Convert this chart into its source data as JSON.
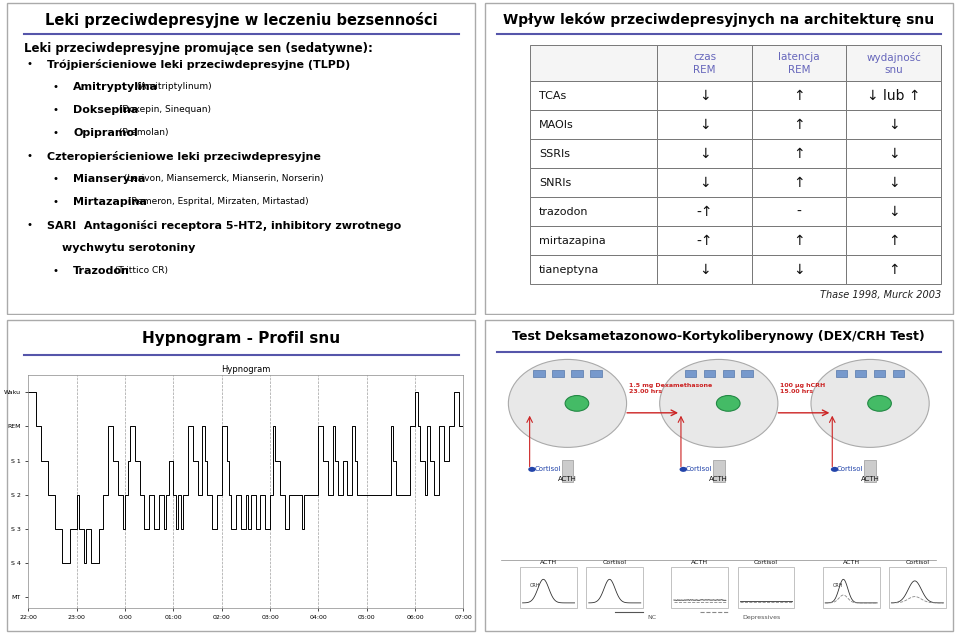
{
  "panel1_title": "Leki przeciwdepresyjne w leczeniu bezsenności",
  "panel1_subtitle": "Leki przeciwdepresyjne promujące sen (sedatywne):",
  "panel1_lines": [
    {
      "indent": 1,
      "bold_text": "Trójpierścieniowe leki przeciwdepresyjne (TLPD)",
      "small_text": ""
    },
    {
      "indent": 2,
      "bold_text": "Amitryptylina",
      "small_text": "(Amitriptylinum)"
    },
    {
      "indent": 2,
      "bold_text": "Doksepina",
      "small_text": "(Doxepin, Sinequan)"
    },
    {
      "indent": 2,
      "bold_text": "Opipramol",
      "small_text": "(Pramolan)"
    },
    {
      "indent": 1,
      "bold_text": "Czteropierścieniowe leki przeciwdepresyjne",
      "small_text": ""
    },
    {
      "indent": 2,
      "bold_text": "Mianseryna",
      "small_text": "(Lerivon, Miansemerck, Mianserin, Norserin)"
    },
    {
      "indent": 2,
      "bold_text": "Mirtazapina",
      "small_text": "(Remeron, Esprital, Mirzaten, Mirtastad)"
    },
    {
      "indent": 1,
      "bold_text": "SARI  Antagoniści receptora 5-HT2, inhibitory zwrotnego",
      "small_text": ""
    },
    {
      "indent": 1,
      "bold_text": "       wychwytu serotoniny",
      "small_text": "",
      "no_bullet": true
    },
    {
      "indent": 2,
      "bold_text": "Trazodon",
      "small_text": "(Trittico CR)"
    }
  ],
  "panel2_title": "Wpływ leków przeciwdepresyjnych na architekturę snu",
  "panel2_col_headers": [
    "czas\nREM",
    "latencja\nREM",
    "wydajność\nsnu"
  ],
  "panel2_rows": [
    {
      "label": "TCAs",
      "c1": "↓",
      "c2": "↑",
      "c3": "↓ lub ↑"
    },
    {
      "label": "MAOIs",
      "c1": "↓",
      "c2": "↑",
      "c3": "↓"
    },
    {
      "label": "SSRIs",
      "c1": "↓",
      "c2": "↑",
      "c3": "↓"
    },
    {
      "label": "SNRIs",
      "c1": "↓",
      "c2": "↑",
      "c3": "↓"
    },
    {
      "label": "trazodon",
      "c1": "-↑",
      "c2": "-",
      "c3": "↓"
    },
    {
      "label": "mirtazapina",
      "c1": "-↑",
      "c2": "↑",
      "c3": "↑"
    },
    {
      "label": "tianeptyna",
      "c1": "↓",
      "c2": "↓",
      "c3": "↑"
    }
  ],
  "panel2_citation": "Thase 1998, Murck 2003",
  "panel3_title": "Hypnogram - Profil snu",
  "panel4_title": "Test Deksametazonowo-Kortykoliberynowy (DEX/CRH Test)",
  "bg_color": "#ffffff",
  "title_color": "#000000",
  "header_color": "#6666bb",
  "border_color": "#999999",
  "line_color": "#5555aa",
  "bullet_color": "#000000"
}
